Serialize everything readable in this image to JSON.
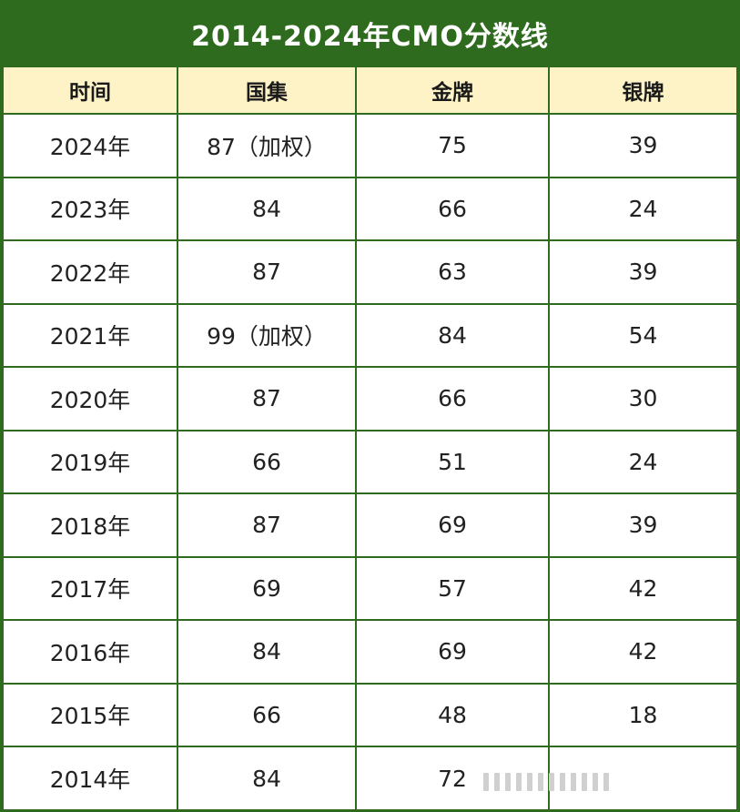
{
  "title": "2014-2024年CMO分数线",
  "headers": [
    "时间",
    "国集",
    "金牌",
    "银牌"
  ],
  "rows": [
    [
      "2024年",
      "87（加权）",
      "75",
      "39"
    ],
    [
      "2023年",
      "84",
      "66",
      "24"
    ],
    [
      "2022年",
      "87",
      "63",
      "39"
    ],
    [
      "2021年",
      "99（加权）",
      "84",
      "54"
    ],
    [
      "2020年",
      "87",
      "66",
      "30"
    ],
    [
      "2019年",
      "66",
      "51",
      "24"
    ],
    [
      "2018年",
      "87",
      "69",
      "39"
    ],
    [
      "2017年",
      "69",
      "57",
      "42"
    ],
    [
      "2016年",
      "84",
      "69",
      "42"
    ],
    [
      "2015年",
      "66",
      "48",
      "18"
    ],
    [
      "2014年",
      "84",
      "72",
      ""
    ]
  ],
  "colors": {
    "border_green": "#2f6b1e",
    "header_cream": "#fdf3c6",
    "title_text": "#ffffff"
  }
}
